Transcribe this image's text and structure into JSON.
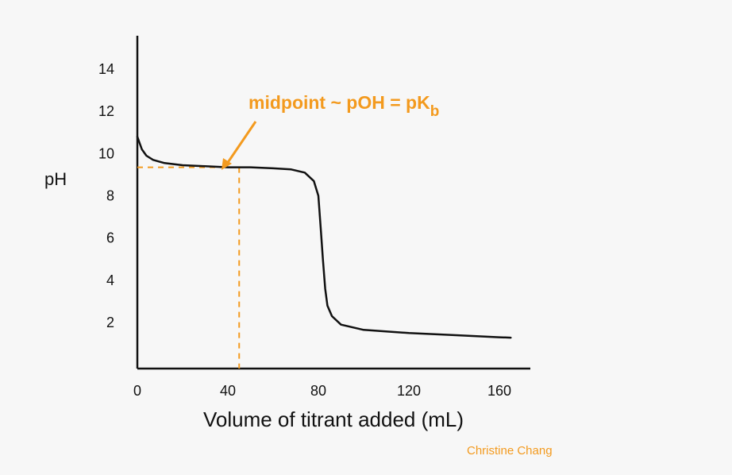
{
  "chart_data": {
    "type": "line",
    "title": "",
    "xlabel": "Volume of titrant added (mL)",
    "ylabel": "pH",
    "xlim": [
      0,
      180
    ],
    "ylim": [
      0,
      15
    ],
    "x_ticks": [
      0,
      40,
      80,
      120,
      160
    ],
    "y_ticks": [
      2,
      4,
      6,
      8,
      10,
      12,
      14
    ],
    "grid": false,
    "series": [
      {
        "points": [
          [
            0,
            10.8
          ],
          [
            1,
            10.5
          ],
          [
            2,
            10.2
          ],
          [
            4,
            9.9
          ],
          [
            7,
            9.7
          ],
          [
            12,
            9.55
          ],
          [
            20,
            9.45
          ],
          [
            30,
            9.4
          ],
          [
            40,
            9.35
          ],
          [
            50,
            9.35
          ],
          [
            60,
            9.3
          ],
          [
            68,
            9.25
          ],
          [
            74,
            9.1
          ],
          [
            78,
            8.7
          ],
          [
            80,
            8.0
          ],
          [
            81,
            6.5
          ],
          [
            82,
            5.0
          ],
          [
            83,
            3.6
          ],
          [
            84,
            2.8
          ],
          [
            86,
            2.3
          ],
          [
            90,
            1.9
          ],
          [
            100,
            1.65
          ],
          [
            120,
            1.5
          ],
          [
            140,
            1.4
          ],
          [
            160,
            1.3
          ],
          [
            165,
            1.28
          ]
        ],
        "color": "#111111"
      }
    ],
    "midpoint": {
      "x": 45,
      "y": 9.35,
      "color": "#f39a1e"
    },
    "annotation": {
      "text_main": "midpoint ~ pOH = pK",
      "text_sub": "b",
      "color": "#f39a1e"
    }
  },
  "credit": "Christine Chang"
}
